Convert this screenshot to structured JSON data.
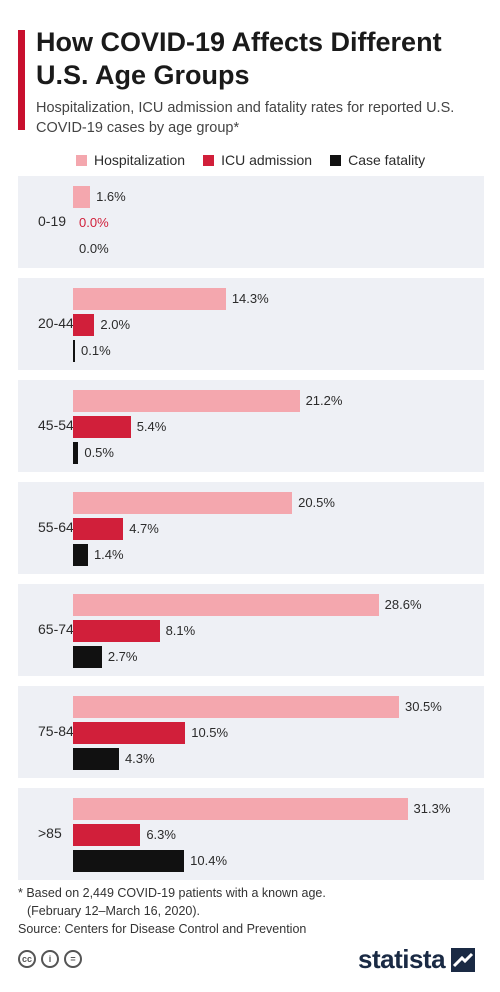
{
  "header": {
    "title": "How COVID-19 Affects Different U.S. Age Groups",
    "subtitle": "Hospitalization, ICU admission and fatality rates for reported U.S. COVID-19 cases by age group*"
  },
  "colors": {
    "accent": "#c8102e",
    "hospitalization": "#f4a7ae",
    "icu": "#d11f3a",
    "fatality": "#111111",
    "panel": "#eef0f5"
  },
  "chart_data": {
    "type": "bar",
    "orientation": "horizontal",
    "categories": [
      "0-19",
      "20-44",
      "45-54",
      "55-64",
      "65-74",
      "75-84",
      ">85"
    ],
    "series": [
      {
        "name": "Hospitalization",
        "values": [
          1.6,
          14.3,
          21.2,
          20.5,
          28.6,
          30.5,
          31.3
        ]
      },
      {
        "name": "ICU admission",
        "values": [
          0.0,
          2.0,
          5.4,
          4.7,
          8.1,
          10.5,
          6.3
        ]
      },
      {
        "name": "Case fatality",
        "values": [
          0.0,
          0.1,
          0.5,
          1.4,
          2.7,
          4.3,
          10.4
        ]
      }
    ],
    "value_suffix": "%",
    "xlim": [
      0,
      32
    ],
    "grid": false,
    "legend_position": "top"
  },
  "footnote": {
    "line1": "* Based on 2,449 COVID-19 patients with a known age.",
    "line2": "(February 12–March 16, 2020).",
    "source": "Source: Centers for Disease Control and Prevention"
  },
  "footer": {
    "license_icons": [
      "cc-icon",
      "person-icon",
      "equals-icon"
    ],
    "brand": "statista"
  }
}
